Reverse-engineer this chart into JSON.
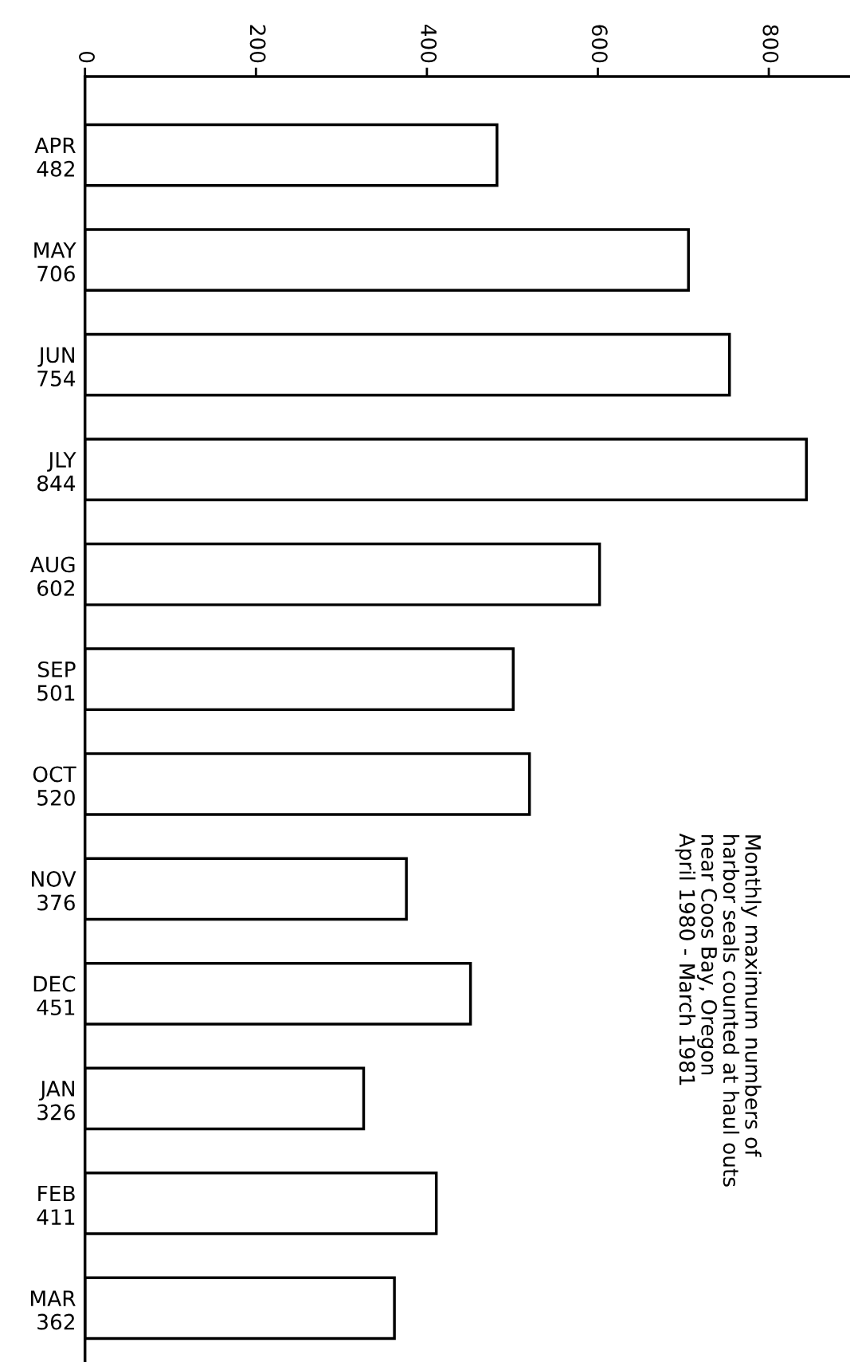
{
  "chart_data": {
    "type": "bar",
    "orientation": "horizontal",
    "title": "Monthly maximum numbers of\nharbor seals counted at haul outs\nnear Coos Bay, Oregon\nApril 1980 - March 1981",
    "categories": [
      "APR",
      "MAY",
      "JUN",
      "JLY",
      "AUG",
      "SEP",
      "OCT",
      "NOV",
      "DEC",
      "JAN",
      "FEB",
      "MAR"
    ],
    "values": [
      482,
      706,
      754,
      844,
      602,
      501,
      520,
      376,
      451,
      326,
      411,
      362
    ],
    "value_labels": [
      "482",
      "706",
      "754",
      "844",
      "602",
      "501",
      "520",
      "376",
      "451",
      "326",
      "411",
      "362"
    ],
    "color": "#ffffff",
    "xlim": [
      0,
      895
    ],
    "xticks": [
      0,
      200,
      400,
      600,
      800
    ],
    "grid": false,
    "legend": false
  }
}
